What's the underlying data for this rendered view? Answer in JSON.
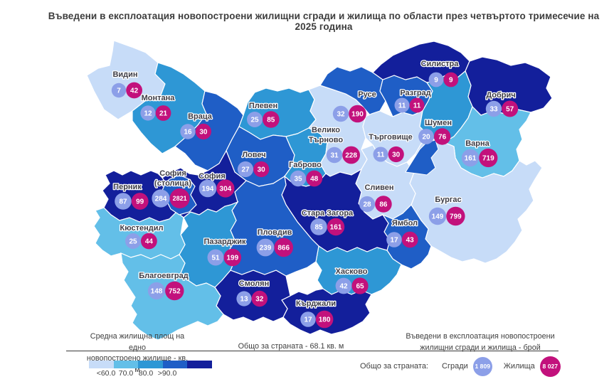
{
  "title": "Въведени в експлоатация новопостроени жилищни сгради и жилища по области през четвъртото тримесечие на 2025 година",
  "map": {
    "scale_colors": [
      "#c7dcf8",
      "#63bfe8",
      "#2e97d5",
      "#1f5ec6",
      "#131f9b"
    ],
    "buildings_circle_color": "#8c9fe8",
    "dwellings_circle_color": "#c2117c"
  },
  "legend": {
    "left_caption_line1": "Средна жилищна площ на едно",
    "left_caption_line2": "новопостроено жилище - кв. м",
    "scale_labels": [
      "<60.0",
      "70.0",
      "80.0",
      ">90.0"
    ],
    "middle_caption": "Общо за страната - 68.1 кв. м",
    "right_caption_line1": "Въведени в експлоатация новопостроени",
    "right_caption_line2": "жилищни сгради и жилища - брой",
    "totals_label": "Общо за страната:",
    "buildings_label": "Сгради",
    "buildings_total": "1 809",
    "dwellings_label": "Жилища",
    "dwellings_total": "8 027"
  },
  "chart_data": {
    "type": "heatmap",
    "subtype": "choropleth_map",
    "area": "Bulgaria, 28 provinces",
    "title": "Въведени в експлоатация новопостроени жилищни сгради и жилища по области през четвъртото тримесечие на 2025 година",
    "bucket_metric": "Средна жилищна площ на едно новопостроено жилище - кв. м",
    "bucket_legend": [
      "<60.0",
      "60.0-70.0",
      "70.0-80.0",
      "80.0-90.0",
      ">90.0"
    ],
    "series_legend": [
      "Сгради (син кръг)",
      "Жилища (розов кръг)"
    ],
    "national": {
      "avg_area_sqm": 68.1,
      "buildings": 1809,
      "dwellings": 8027
    },
    "regions": [
      {
        "name": "Видин",
        "buildings": 7,
        "dwellings": 42,
        "bucket": 0
      },
      {
        "name": "Монтана",
        "buildings": 12,
        "dwellings": 21,
        "bucket": 2
      },
      {
        "name": "Враца",
        "buildings": 16,
        "dwellings": 30,
        "bucket": 3
      },
      {
        "name": "Плевен",
        "buildings": 25,
        "dwellings": 85,
        "bucket": 2
      },
      {
        "name": "Ловеч",
        "buildings": 27,
        "dwellings": 30,
        "bucket": 3
      },
      {
        "name": "Габрово",
        "buildings": 35,
        "dwellings": 48,
        "bucket": 2
      },
      {
        "name": "Велико Търново",
        "buildings": 31,
        "dwellings": 228,
        "bucket": 0
      },
      {
        "name": "Русе",
        "buildings": 32,
        "dwellings": 190,
        "bucket": 3
      },
      {
        "name": "Разград",
        "buildings": 11,
        "dwellings": 11,
        "bucket": 3
      },
      {
        "name": "Търговище",
        "buildings": 11,
        "dwellings": 30,
        "bucket": 0
      },
      {
        "name": "Силистра",
        "buildings": 9,
        "dwellings": 9,
        "bucket": 4
      },
      {
        "name": "Добрич",
        "buildings": 33,
        "dwellings": 57,
        "bucket": 4
      },
      {
        "name": "Шумен",
        "buildings": 20,
        "dwellings": 76,
        "bucket": 2
      },
      {
        "name": "Варна",
        "buildings": 161,
        "dwellings": 719,
        "bucket": 1
      },
      {
        "name": "Бургас",
        "buildings": 149,
        "dwellings": 799,
        "bucket": 0
      },
      {
        "name": "Сливен",
        "buildings": 28,
        "dwellings": 86,
        "bucket": 0
      },
      {
        "name": "Ямбол",
        "buildings": 17,
        "dwellings": 43,
        "bucket": 3
      },
      {
        "name": "Стара Загора",
        "buildings": 85,
        "dwellings": 161,
        "bucket": 4
      },
      {
        "name": "Хасково",
        "buildings": 42,
        "dwellings": 65,
        "bucket": 2
      },
      {
        "name": "Кърджали",
        "buildings": 17,
        "dwellings": 180,
        "bucket": 4
      },
      {
        "name": "Смолян",
        "buildings": 13,
        "dwellings": 32,
        "bucket": 4
      },
      {
        "name": "Пловдив",
        "buildings": 239,
        "dwellings": 866,
        "bucket": 3
      },
      {
        "name": "Пазарджик",
        "buildings": 51,
        "dwellings": 199,
        "bucket": 2
      },
      {
        "name": "София (столица)",
        "buildings": 284,
        "dwellings": 2821,
        "bucket": 3
      },
      {
        "name": "София",
        "buildings": 194,
        "dwellings": 304,
        "bucket": 4
      },
      {
        "name": "Перник",
        "buildings": 87,
        "dwellings": 99,
        "bucket": 4
      },
      {
        "name": "Кюстендил",
        "buildings": 25,
        "dwellings": 44,
        "bucket": 1
      },
      {
        "name": "Благоевград",
        "buildings": 148,
        "dwellings": 752,
        "bucket": 1
      }
    ]
  }
}
